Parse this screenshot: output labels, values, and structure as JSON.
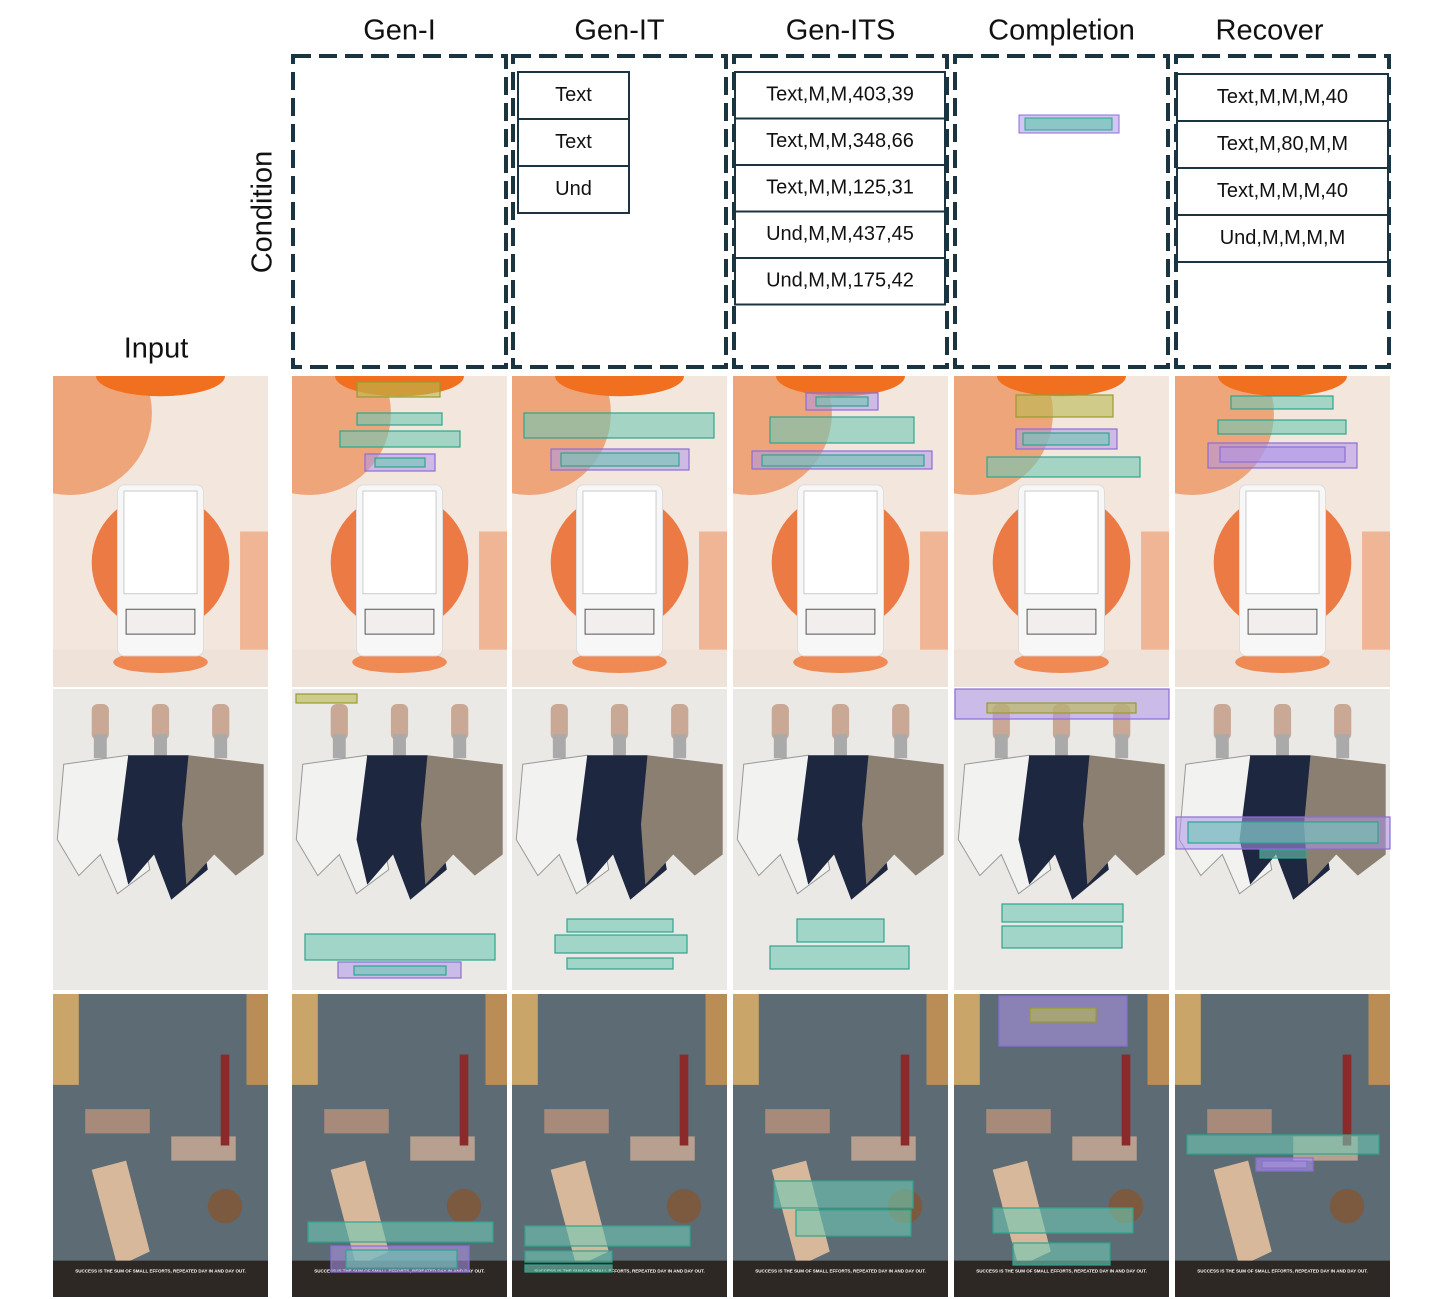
{
  "row_label": "Condition",
  "input_label": "Input",
  "photo_caption": "SUCCESS IS THE SUM OF SMALL EFFORTS, REPEATED DAY IN AND DAY OUT.",
  "columns": [
    {
      "title": "Gen-I",
      "conditions": []
    },
    {
      "title": "Gen-IT",
      "conditions": [
        "Text",
        "Text",
        "Und"
      ]
    },
    {
      "title": "Gen-ITS",
      "conditions": [
        "Text,M,M,403,39",
        "Text,M,M,348,66",
        "Text,M,M,125,31",
        "Und,M,M,437,45",
        "Und,M,M,175,42"
      ]
    },
    {
      "title": "Completion",
      "conditions": []
    },
    {
      "title": "Recover",
      "conditions": [
        "Text,M,M,M,40",
        "Text,M,80,M,M",
        "Text,M,M,M,40",
        "Und,M,M,M,M"
      ]
    }
  ]
}
